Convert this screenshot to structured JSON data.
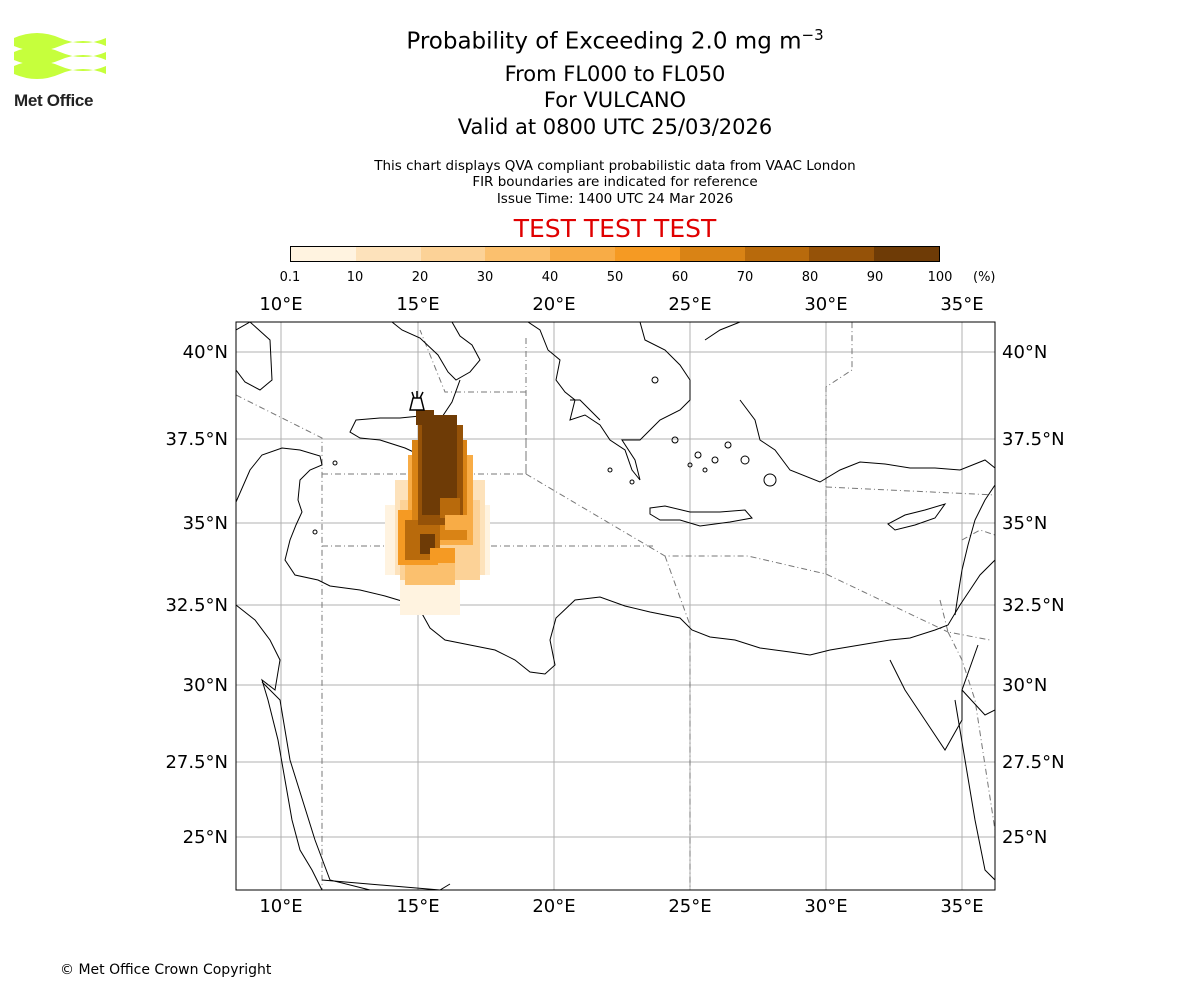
{
  "header": {
    "logo_text": "Met Office",
    "title": "Probability of Exceeding 2.0 mg m",
    "title_sup": "−3",
    "levels": "From FL000 to FL050",
    "volcano": "For VULCANO",
    "valid": "Valid at 0800 UTC 25/03/2026",
    "info_line1": "This chart displays QVA compliant probabilistic data from VAAC London",
    "info_line2": "FIR boundaries are indicated for reference",
    "issue_time": "Issue Time: 1400 UTC 24 Mar 2026",
    "test_banner": "TEST TEST TEST"
  },
  "colorbar": {
    "ticks": [
      "0.1",
      "10",
      "20",
      "30",
      "40",
      "50",
      "60",
      "70",
      "80",
      "90",
      "100"
    ],
    "unit": "(%)",
    "colors": [
      "#fff3e0",
      "#fde2bb",
      "#fcd297",
      "#fbc06e",
      "#f8ac46",
      "#f59a23",
      "#d98315",
      "#b86a0c",
      "#955208",
      "#6e3b06"
    ]
  },
  "map": {
    "lon_labels": [
      "10°E",
      "15°E",
      "20°E",
      "25°E",
      "30°E",
      "35°E"
    ],
    "lat_labels": [
      "40°N",
      "37.5°N",
      "35°N",
      "32.5°N",
      "30°N",
      "27.5°N",
      "25°N"
    ],
    "volcano_icon": "volcano-icon"
  },
  "footer": {
    "copyright": "© Met Office Crown Copyright"
  }
}
